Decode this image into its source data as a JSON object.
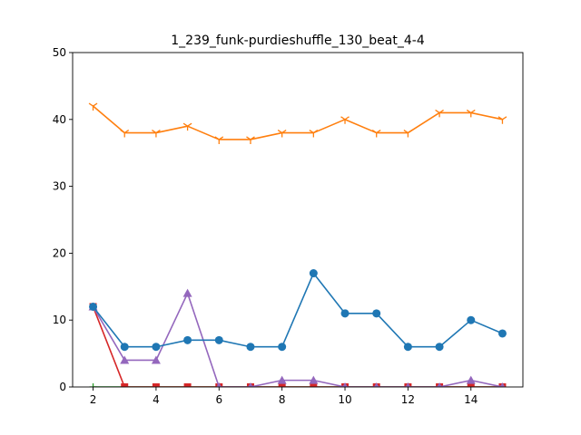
{
  "chart_data": {
    "type": "line",
    "title": "1_239_funk-purdieshuffle_130_beat_4-4",
    "xlabel": "",
    "ylabel": "",
    "xlim": [
      1.35,
      15.65
    ],
    "ylim": [
      0,
      50
    ],
    "xticks": [
      2,
      4,
      6,
      8,
      10,
      12,
      14
    ],
    "yticks": [
      0,
      10,
      20,
      30,
      40,
      50
    ],
    "grid": false,
    "legend": "none",
    "series": [
      {
        "color": "#ff7f0e",
        "marker": "tri_down",
        "x": [
          2,
          3,
          4,
          5,
          6,
          7,
          8,
          9,
          10,
          11,
          12,
          13,
          14,
          15
        ],
        "y": [
          42,
          38,
          38,
          39,
          37,
          37,
          38,
          38,
          40,
          38,
          38,
          41,
          41,
          40
        ]
      },
      {
        "color": "#2ca02c",
        "marker": "plus",
        "x": [
          2,
          3,
          4,
          5,
          6,
          7,
          8,
          9,
          10,
          11,
          12,
          13,
          14,
          15
        ],
        "y": [
          0,
          0,
          0,
          0,
          0,
          0,
          0,
          0,
          0,
          0,
          0,
          0,
          0,
          0
        ]
      },
      {
        "color": "#d62728",
        "marker": "square",
        "x": [
          2,
          3,
          4,
          5,
          6,
          7,
          8,
          9,
          10,
          11,
          12,
          13,
          14,
          15
        ],
        "y": [
          12,
          0,
          0,
          0,
          0,
          0,
          0,
          0,
          0,
          0,
          0,
          0,
          0,
          0
        ]
      },
      {
        "color": "#9467bd",
        "marker": "triangle_up",
        "x": [
          2,
          3,
          4,
          5,
          6,
          7,
          8,
          9,
          10,
          11,
          12,
          13,
          14,
          15
        ],
        "y": [
          12,
          4,
          4,
          14,
          0,
          0,
          1,
          1,
          0,
          0,
          0,
          0,
          1,
          0
        ]
      },
      {
        "color": "#1f77b4",
        "marker": "circle",
        "x": [
          2,
          3,
          4,
          5,
          6,
          7,
          8,
          9,
          10,
          11,
          12,
          13,
          14,
          15
        ],
        "y": [
          12,
          6,
          6,
          7,
          7,
          6,
          6,
          17,
          11,
          11,
          6,
          6,
          10,
          8
        ]
      }
    ]
  }
}
